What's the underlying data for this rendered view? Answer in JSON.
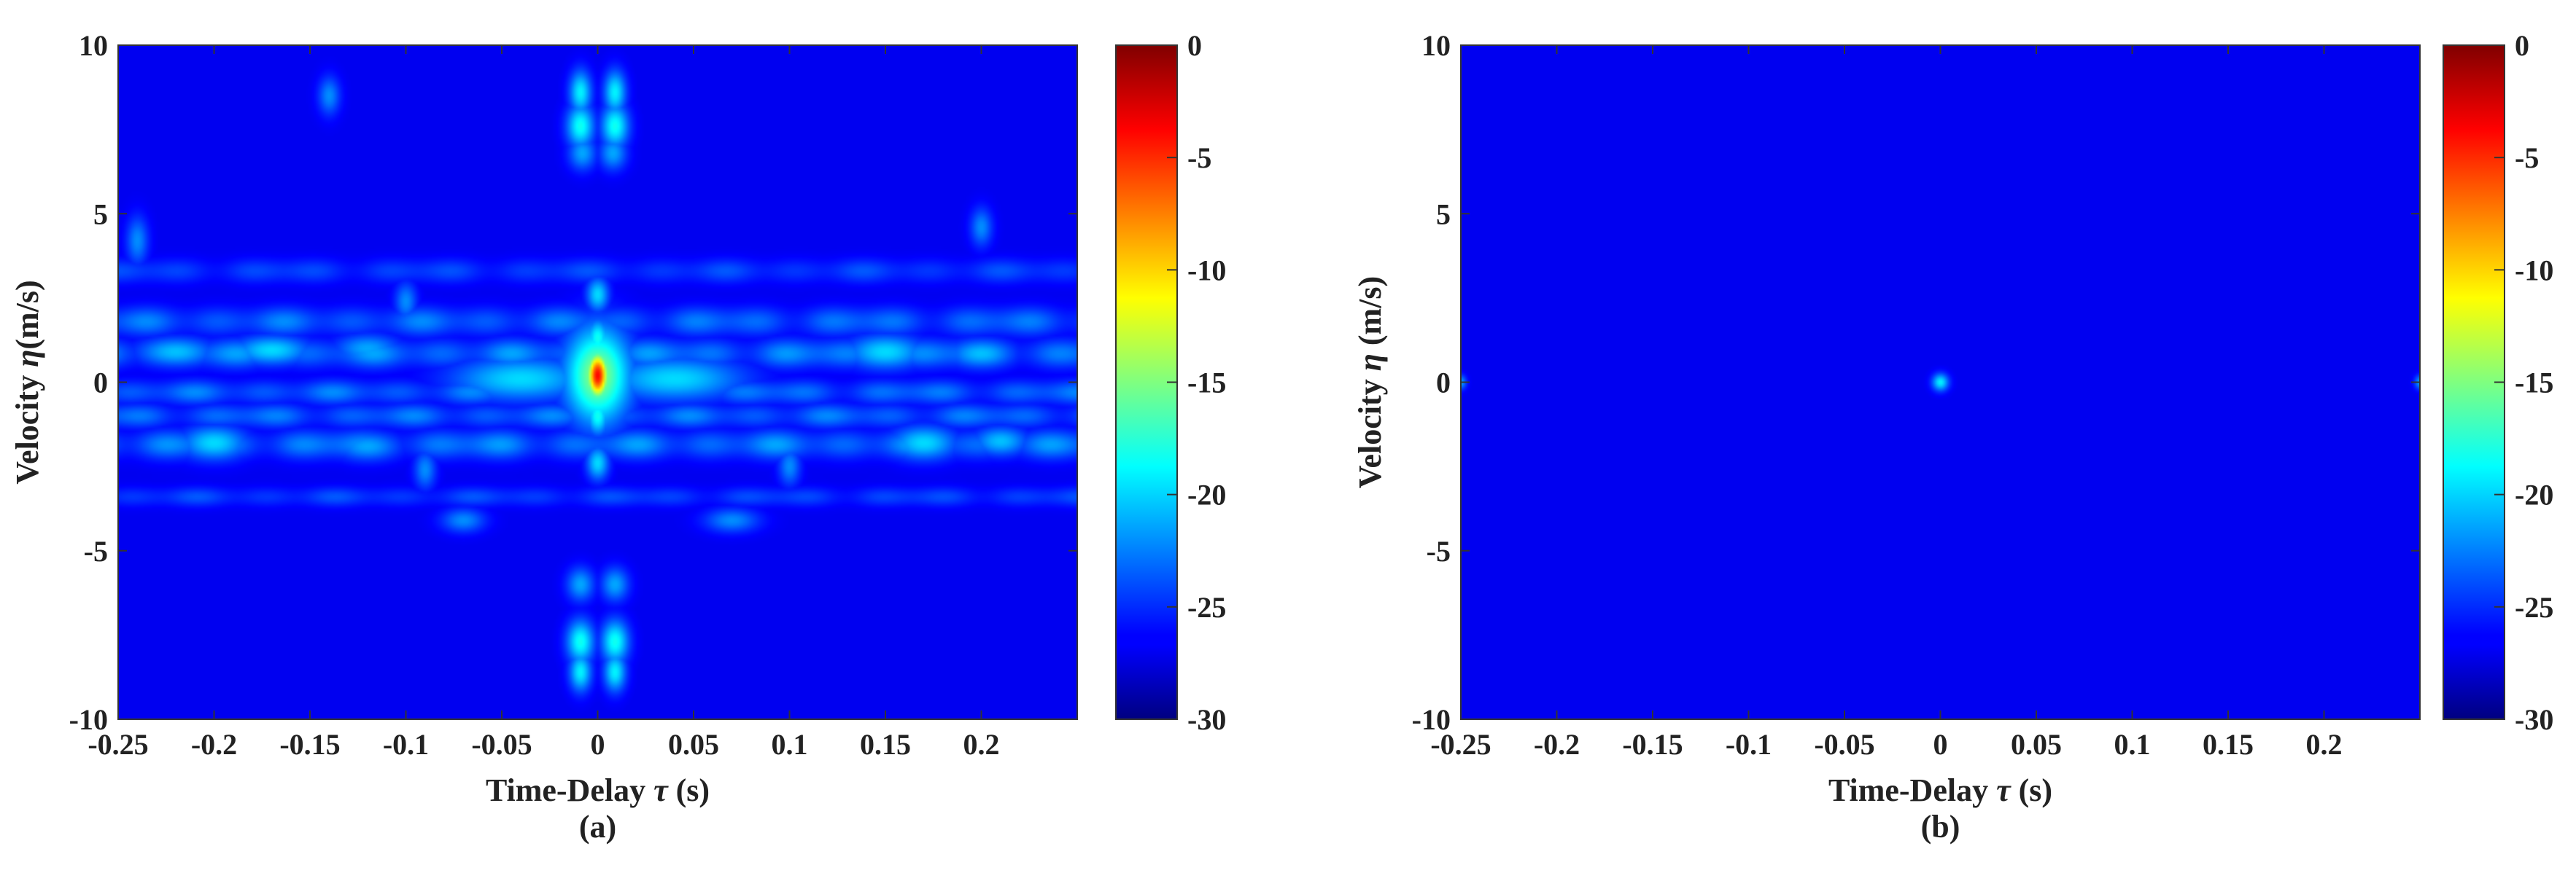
{
  "colors": {
    "background": "#ffffff",
    "floor": "#0a0e96",
    "colormap": "jet"
  },
  "chart_data": [
    {
      "type": "heatmap",
      "panel_label": "(a)",
      "xlabel_text": "Time-Delay ",
      "xlabel_symbol": "τ",
      "xlabel_unit": " (s)",
      "ylabel_text": "Velocity ",
      "ylabel_symbol": "η",
      "ylabel_unit": "(m/s)",
      "xlim": [
        -0.25,
        0.25
      ],
      "ylim": [
        -10,
        10
      ],
      "clim": [
        -30,
        0
      ],
      "x_ticks": [
        {
          "value": -0.25,
          "label": "-0.25"
        },
        {
          "value": -0.2,
          "label": "-0.2"
        },
        {
          "value": -0.15,
          "label": "-0.15"
        },
        {
          "value": -0.1,
          "label": "-0.1"
        },
        {
          "value": -0.05,
          "label": "-0.05"
        },
        {
          "value": 0,
          "label": "0"
        },
        {
          "value": 0.05,
          "label": "0.05"
        },
        {
          "value": 0.1,
          "label": "0.1"
        },
        {
          "value": 0.15,
          "label": "0.15"
        },
        {
          "value": 0.2,
          "label": "0.2"
        }
      ],
      "y_ticks": [
        {
          "value": 10,
          "label": "10"
        },
        {
          "value": 5,
          "label": "5"
        },
        {
          "value": 0,
          "label": "0"
        },
        {
          "value": -5,
          "label": "-5"
        },
        {
          "value": -10,
          "label": "-10"
        }
      ],
      "colorbar_ticks": [
        {
          "value": 0,
          "label": "0"
        },
        {
          "value": -5,
          "label": "-5"
        },
        {
          "value": -10,
          "label": "-10"
        },
        {
          "value": -15,
          "label": "-15"
        },
        {
          "value": -20,
          "label": "-20"
        },
        {
          "value": -25,
          "label": "-25"
        },
        {
          "value": -30,
          "label": "-30"
        }
      ],
      "peaks": [
        {
          "x": 0.0,
          "y": 0.2,
          "level": 0,
          "x_width": 0.004,
          "y_width": 0.5
        },
        {
          "x": 0.0,
          "y": 0.2,
          "level": -14,
          "x_width": 0.012,
          "y_width": 1.0
        },
        {
          "x": 0.0,
          "y": 1.3,
          "level": -19,
          "x_width": 0.004,
          "y_width": 0.4
        },
        {
          "x": 0.0,
          "y": -1.0,
          "level": -19,
          "x_width": 0.004,
          "y_width": 0.4
        },
        {
          "x": 0.0,
          "y": 2.6,
          "level": -21,
          "x_width": 0.004,
          "y_width": 0.35
        },
        {
          "x": 0.0,
          "y": -2.4,
          "level": -21,
          "x_width": 0.004,
          "y_width": 0.35
        },
        {
          "x": -0.04,
          "y": 0.1,
          "level": -21,
          "x_width": 0.025,
          "y_width": 0.45
        },
        {
          "x": 0.04,
          "y": 0.1,
          "level": -21,
          "x_width": 0.025,
          "y_width": 0.45
        },
        {
          "x": -0.009,
          "y": 8.6,
          "level": -20,
          "x_width": 0.004,
          "y_width": 0.45
        },
        {
          "x": 0.009,
          "y": 8.6,
          "level": -20,
          "x_width": 0.004,
          "y_width": 0.45
        },
        {
          "x": -0.009,
          "y": 7.6,
          "level": -19,
          "x_width": 0.005,
          "y_width": 0.45
        },
        {
          "x": 0.009,
          "y": 7.6,
          "level": -19,
          "x_width": 0.005,
          "y_width": 0.45
        },
        {
          "x": -0.008,
          "y": 6.8,
          "level": -23,
          "x_width": 0.005,
          "y_width": 0.35
        },
        {
          "x": 0.008,
          "y": 6.8,
          "level": -23,
          "x_width": 0.005,
          "y_width": 0.35
        },
        {
          "x": -0.009,
          "y": -6.0,
          "level": -23,
          "x_width": 0.005,
          "y_width": 0.35
        },
        {
          "x": 0.009,
          "y": -6.0,
          "level": -23,
          "x_width": 0.005,
          "y_width": 0.35
        },
        {
          "x": -0.009,
          "y": -7.7,
          "level": -19,
          "x_width": 0.005,
          "y_width": 0.45
        },
        {
          "x": 0.009,
          "y": -7.7,
          "level": -19,
          "x_width": 0.005,
          "y_width": 0.45
        },
        {
          "x": -0.009,
          "y": -8.6,
          "level": -20,
          "x_width": 0.004,
          "y_width": 0.4
        },
        {
          "x": 0.009,
          "y": -8.6,
          "level": -20,
          "x_width": 0.004,
          "y_width": 0.4
        },
        {
          "x": -0.22,
          "y": 0.9,
          "level": -22,
          "x_width": 0.014,
          "y_width": 0.3
        },
        {
          "x": -0.17,
          "y": 0.95,
          "level": -21,
          "x_width": 0.014,
          "y_width": 0.3
        },
        {
          "x": -0.12,
          "y": 1.0,
          "level": -23,
          "x_width": 0.012,
          "y_width": 0.3
        },
        {
          "x": 0.15,
          "y": 0.9,
          "level": -21,
          "x_width": 0.014,
          "y_width": 0.35
        },
        {
          "x": 0.2,
          "y": 0.85,
          "level": -22,
          "x_width": 0.012,
          "y_width": 0.3
        },
        {
          "x": -0.2,
          "y": -1.8,
          "level": -21,
          "x_width": 0.012,
          "y_width": 0.35
        },
        {
          "x": -0.12,
          "y": -1.9,
          "level": -23,
          "x_width": 0.012,
          "y_width": 0.3
        },
        {
          "x": 0.17,
          "y": -1.8,
          "level": -21,
          "x_width": 0.012,
          "y_width": 0.35
        },
        {
          "x": 0.21,
          "y": -1.75,
          "level": -22,
          "x_width": 0.01,
          "y_width": 0.3
        },
        {
          "x": -0.24,
          "y": 4.2,
          "level": -24,
          "x_width": 0.004,
          "y_width": 0.5
        },
        {
          "x": -0.1,
          "y": 2.4,
          "level": -24,
          "x_width": 0.004,
          "y_width": 0.4
        },
        {
          "x": -0.09,
          "y": -2.6,
          "level": -24,
          "x_width": 0.004,
          "y_width": 0.4
        },
        {
          "x": 0.1,
          "y": -2.5,
          "level": -24,
          "x_width": 0.004,
          "y_width": 0.4
        },
        {
          "x": 0.2,
          "y": 4.6,
          "level": -24,
          "x_width": 0.004,
          "y_width": 0.4
        },
        {
          "x": -0.14,
          "y": 8.5,
          "level": -24,
          "x_width": 0.004,
          "y_width": 0.4
        },
        {
          "x": 0.07,
          "y": -4.1,
          "level": -24,
          "x_width": 0.01,
          "y_width": 0.25
        },
        {
          "x": -0.07,
          "y": -4.1,
          "level": -24,
          "x_width": 0.008,
          "y_width": 0.25
        }
      ],
      "bands": [
        {
          "y": 1.8,
          "level": -24,
          "y_width": 0.3
        },
        {
          "y": 0.85,
          "level": -23,
          "y_width": 0.3
        },
        {
          "y": -0.3,
          "level": -24,
          "y_width": 0.25
        },
        {
          "y": -1.0,
          "level": -24,
          "y_width": 0.25
        },
        {
          "y": -1.85,
          "level": -23,
          "y_width": 0.3
        },
        {
          "y": 3.3,
          "level": -26,
          "y_width": 0.25
        },
        {
          "y": -3.4,
          "level": -26,
          "y_width": 0.2
        }
      ]
    },
    {
      "type": "heatmap",
      "panel_label": "(b)",
      "xlabel_text": "Time-Delay ",
      "xlabel_symbol": "τ",
      "xlabel_unit": " (s)",
      "ylabel_text": "Velocity ",
      "ylabel_symbol": "η",
      "ylabel_unit": " (m/s)",
      "xlim": [
        -0.25,
        0.25
      ],
      "ylim": [
        -10,
        10
      ],
      "clim": [
        -30,
        0
      ],
      "x_ticks": [
        {
          "value": -0.25,
          "label": "-0.25"
        },
        {
          "value": -0.2,
          "label": "-0.2"
        },
        {
          "value": -0.15,
          "label": "-0.15"
        },
        {
          "value": -0.1,
          "label": "-0.1"
        },
        {
          "value": -0.05,
          "label": "-0.05"
        },
        {
          "value": 0,
          "label": "0"
        },
        {
          "value": 0.05,
          "label": "0.05"
        },
        {
          "value": 0.1,
          "label": "0.1"
        },
        {
          "value": 0.15,
          "label": "0.15"
        },
        {
          "value": 0.2,
          "label": "0.2"
        }
      ],
      "y_ticks": [
        {
          "value": 10,
          "label": "10"
        },
        {
          "value": 5,
          "label": "5"
        },
        {
          "value": 0,
          "label": "0"
        },
        {
          "value": -5,
          "label": "-5"
        },
        {
          "value": -10,
          "label": "-10"
        }
      ],
      "colorbar_ticks": [
        {
          "value": 0,
          "label": "0"
        },
        {
          "value": -5,
          "label": "-5"
        },
        {
          "value": -10,
          "label": "-10"
        },
        {
          "value": -15,
          "label": "-15"
        },
        {
          "value": -20,
          "label": "-20"
        },
        {
          "value": -25,
          "label": "-25"
        },
        {
          "value": -30,
          "label": "-30"
        }
      ],
      "peaks": [
        {
          "x": 0.0,
          "y": 0.0,
          "level": -20,
          "x_width": 0.003,
          "y_width": 0.18
        },
        {
          "x": -0.25,
          "y": 0.0,
          "level": -23,
          "x_width": 0.002,
          "y_width": 0.15
        },
        {
          "x": 0.25,
          "y": 0.0,
          "level": -23,
          "x_width": 0.002,
          "y_width": 0.15
        }
      ],
      "bands": []
    }
  ]
}
